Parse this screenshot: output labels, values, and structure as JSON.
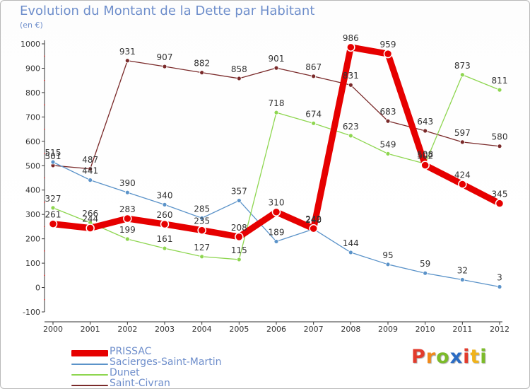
{
  "title": "Evolution du Montant de la Dette par Habitant",
  "unit": "(en €)",
  "logo": {
    "letters": [
      "P",
      "r",
      "o",
      "x",
      "i",
      "t",
      "i"
    ],
    "colors": [
      "#e23b2c",
      "#f08a1c",
      "#7cbb2a",
      "#2b6cc4",
      "#e23b2c",
      "#f0b31c",
      "#7cbb2a"
    ]
  },
  "chart_data": {
    "type": "line",
    "x": [
      "2000",
      "2001",
      "2002",
      "2003",
      "2004",
      "2005",
      "2006",
      "2007",
      "2008",
      "2009",
      "2010",
      "2011",
      "2012"
    ],
    "ylim": [
      -100,
      1000
    ],
    "yticks": [
      "-100",
      "0",
      "100",
      "200",
      "300",
      "400",
      "500",
      "600",
      "700",
      "800",
      "900",
      "1000"
    ],
    "grid": false,
    "legend_position": "bottom-left",
    "series": [
      {
        "name": "Saint-Civran",
        "color": "#7a2a2a",
        "values": [
          501,
          487,
          931,
          907,
          882,
          858,
          901,
          867,
          831,
          683,
          643,
          597,
          580
        ],
        "labels": [
          "501",
          "487",
          "931",
          "907",
          "882",
          "858",
          "901",
          "867",
          "831",
          "683",
          "643",
          "597",
          "580"
        ]
      },
      {
        "name": "Sacierges-Saint-Martin",
        "color": "#5b93c9",
        "values": [
          515,
          441,
          390,
          340,
          285,
          357,
          189,
          240,
          144,
          95,
          59,
          32,
          3
        ],
        "labels": [
          "515",
          "441",
          "390",
          "340",
          "285",
          "357",
          "189",
          "240",
          "144",
          "95",
          "59",
          "32",
          "3"
        ]
      },
      {
        "name": "Dunet",
        "color": "#8ed650",
        "values": [
          327,
          266,
          199,
          161,
          127,
          115,
          718,
          674,
          623,
          549,
          508,
          873,
          811
        ],
        "labels": [
          "327",
          "266",
          "199",
          "161",
          "127",
          "115",
          "718",
          "674",
          "623",
          "549",
          "508",
          "873",
          "811"
        ]
      },
      {
        "name": "PRISSAC",
        "color": "#e60000",
        "values": [
          261,
          244,
          283,
          260,
          235,
          208,
          310,
          242,
          986,
          959,
          502,
          424,
          345
        ],
        "labels": [
          "261",
          "244",
          "283",
          "260",
          "235",
          "208",
          "310",
          "242",
          "986",
          "959",
          "502",
          "424",
          "345"
        ]
      }
    ],
    "legend_order": [
      "PRISSAC",
      "Sacierges-Saint-Martin",
      "Dunet",
      "Saint-Civran"
    ]
  }
}
